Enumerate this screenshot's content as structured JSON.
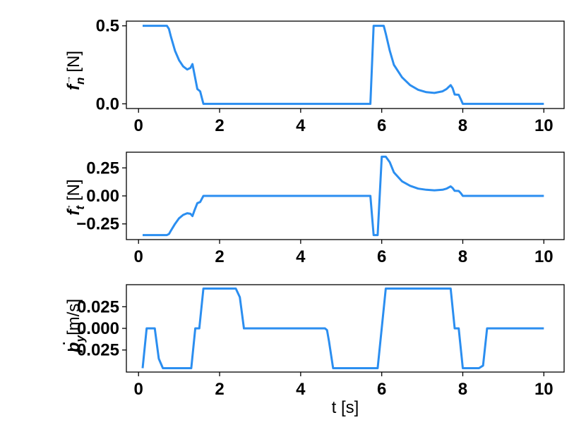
{
  "chart_data": [
    {
      "type": "line",
      "ylabel_symbol": "f",
      "ylabel_sub": "n",
      "ylabel_arrow": "→",
      "ylabel_unit": "[N]",
      "xlim": [
        -0.3,
        10.5
      ],
      "ylim": [
        -0.03,
        0.53
      ],
      "xticks": [
        0,
        2,
        4,
        6,
        8,
        10
      ],
      "xtick_labels": [
        "0",
        "2",
        "4",
        "6",
        "8",
        "10"
      ],
      "yticks": [
        0.0,
        0.5
      ],
      "ytick_labels": [
        "0.0",
        "0.5"
      ],
      "grid": false,
      "series": [
        {
          "color": "#2b8ef0",
          "x": [
            0.1,
            0.7,
            0.75,
            0.8,
            0.9,
            1.0,
            1.1,
            1.2,
            1.28,
            1.33,
            1.38,
            1.45,
            1.52,
            1.6,
            2.0,
            3.0,
            4.0,
            5.0,
            5.72,
            5.8,
            6.05,
            6.1,
            6.2,
            6.3,
            6.5,
            6.7,
            6.9,
            7.1,
            7.3,
            7.5,
            7.6,
            7.7,
            7.75,
            7.8,
            7.9,
            7.95,
            8.0,
            9.0,
            10.0
          ],
          "y": [
            0.5,
            0.5,
            0.48,
            0.43,
            0.34,
            0.28,
            0.24,
            0.22,
            0.23,
            0.255,
            0.19,
            0.095,
            0.08,
            0.0,
            0.0,
            0.0,
            0.0,
            0.0,
            0.0,
            0.5,
            0.5,
            0.45,
            0.34,
            0.25,
            0.17,
            0.12,
            0.09,
            0.075,
            0.07,
            0.08,
            0.095,
            0.12,
            0.1,
            0.06,
            0.058,
            0.03,
            0.0,
            0.0,
            0.0
          ]
        }
      ]
    },
    {
      "type": "line",
      "ylabel_symbol": "f",
      "ylabel_sub": "t",
      "ylabel_arrow": "→",
      "ylabel_unit": "[N]",
      "xlim": [
        -0.3,
        10.5
      ],
      "ylim": [
        -0.39,
        0.39
      ],
      "xticks": [
        0,
        2,
        4,
        6,
        8,
        10
      ],
      "xtick_labels": [
        "0",
        "2",
        "4",
        "6",
        "8",
        "10"
      ],
      "yticks": [
        -0.25,
        0.0,
        0.25
      ],
      "ytick_labels": [
        "−0.25",
        "0.00",
        "0.25"
      ],
      "grid": false,
      "series": [
        {
          "color": "#2b8ef0",
          "x": [
            0.1,
            0.7,
            0.75,
            0.8,
            0.9,
            1.0,
            1.1,
            1.2,
            1.28,
            1.33,
            1.38,
            1.45,
            1.52,
            1.6,
            2.0,
            3.0,
            4.0,
            5.0,
            5.72,
            5.8,
            5.9,
            6.0,
            6.1,
            6.2,
            6.3,
            6.5,
            6.7,
            6.9,
            7.1,
            7.3,
            7.5,
            7.6,
            7.7,
            7.75,
            7.8,
            7.9,
            7.95,
            8.0,
            9.0,
            10.0
          ],
          "y": [
            -0.35,
            -0.35,
            -0.34,
            -0.31,
            -0.25,
            -0.2,
            -0.17,
            -0.155,
            -0.16,
            -0.18,
            -0.13,
            -0.065,
            -0.055,
            0.0,
            0.0,
            0.0,
            0.0,
            0.0,
            0.0,
            -0.35,
            -0.35,
            0.35,
            0.35,
            0.3,
            0.21,
            0.13,
            0.09,
            0.065,
            0.055,
            0.05,
            0.055,
            0.065,
            0.085,
            0.07,
            0.045,
            0.044,
            0.025,
            0.0,
            0.0,
            0.0
          ]
        }
      ]
    },
    {
      "type": "line",
      "ylabel_symbol": "p",
      "ylabel_sub": "y",
      "ylabel_arrow": "·",
      "ylabel_unit": "[m/s]",
      "xlabel": "t [s]",
      "xlim": [
        -0.3,
        10.5
      ],
      "ylim": [
        -0.0505,
        0.0505
      ],
      "xticks": [
        0,
        2,
        4,
        6,
        8,
        10
      ],
      "xtick_labels": [
        "0",
        "2",
        "4",
        "6",
        "8",
        "10"
      ],
      "yticks": [
        -0.025,
        0.0,
        0.025
      ],
      "ytick_labels": [
        "−0.025",
        "0.000",
        "0.025"
      ],
      "grid": false,
      "series": [
        {
          "color": "#2b8ef0",
          "x": [
            0.1,
            0.2,
            0.4,
            0.5,
            0.6,
            1.3,
            1.4,
            1.5,
            1.6,
            2.4,
            2.5,
            2.6,
            4.6,
            4.65,
            4.7,
            4.8,
            5.9,
            6.1,
            7.7,
            7.8,
            7.9,
            8.0,
            8.4,
            8.5,
            8.6,
            10.0
          ],
          "y": [
            -0.046,
            0.0,
            0.0,
            -0.035,
            -0.046,
            -0.046,
            0.0,
            0.0,
            0.046,
            0.046,
            0.036,
            0.0,
            0.0,
            -0.002,
            -0.015,
            -0.046,
            -0.046,
            0.046,
            0.046,
            0.0,
            0.0,
            -0.046,
            -0.046,
            -0.043,
            0.0,
            0.0
          ]
        }
      ]
    }
  ]
}
